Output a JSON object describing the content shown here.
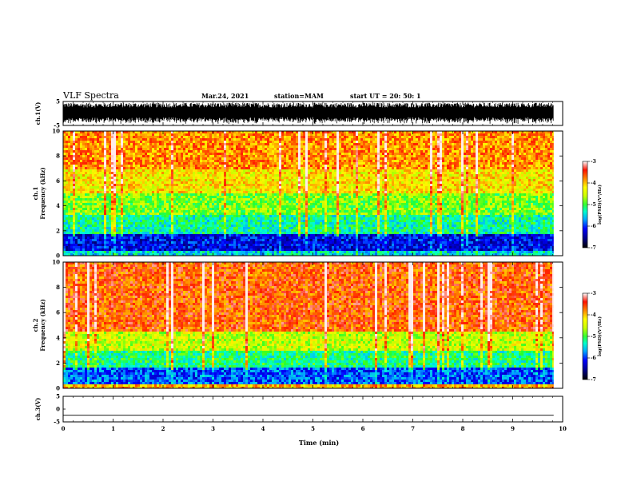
{
  "header": {
    "title": "VLF Spectra",
    "date": "Mar.24, 2021",
    "station": "station=MAM",
    "start": "start  UT =   20: 50: 1"
  },
  "colors": {
    "background": "#ffffff",
    "axes": "#000000",
    "colormap": [
      "#000066",
      "#0000ff",
      "#00aaff",
      "#00ffcc",
      "#33ff33",
      "#ccff00",
      "#ffff00",
      "#ff8800",
      "#ff2200",
      "#ffffff"
    ]
  },
  "chart_data": [
    {
      "type": "line",
      "name": "ch1-waveform",
      "ylabel": "ch.1(V)",
      "ylim": [
        -5,
        5
      ],
      "yticks": [
        "5",
        "-5"
      ],
      "xlim": [
        0,
        10
      ],
      "description_values": {
        "amplitude_range": [
          -4.5,
          4.5
        ],
        "data_end_min": 9.82
      }
    },
    {
      "type": "heatmap",
      "name": "ch1-spectrogram",
      "ylabel_top": "ch.1",
      "ylabel": "Frequency (kHz)",
      "ylim": [
        0,
        10
      ],
      "yticks": [
        "0",
        "2",
        "4",
        "6",
        "8",
        "10"
      ],
      "xlim": [
        0,
        10
      ],
      "data_end_min": 9.82,
      "colorbar": {
        "label": "log(PSD)(V²/Hz)",
        "range": [
          -7,
          -3
        ],
        "ticks": [
          "-3",
          "-4",
          "-5",
          "-6",
          "-7"
        ]
      },
      "bands_kHz": [
        {
          "from": 0,
          "to": 0.4,
          "level": -5.5
        },
        {
          "from": 0.4,
          "to": 1.8,
          "level": -6.3
        },
        {
          "from": 1.8,
          "to": 3.2,
          "level": -5.3
        },
        {
          "from": 3.2,
          "to": 5.0,
          "level": -4.8
        },
        {
          "from": 5.0,
          "to": 7.0,
          "level": -4.2
        },
        {
          "from": 7.0,
          "to": 10.0,
          "level": -3.8
        }
      ]
    },
    {
      "type": "heatmap",
      "name": "ch2-spectrogram",
      "ylabel_top": "ch.2",
      "ylabel": "Frequency (kHz)",
      "ylim": [
        0,
        10
      ],
      "yticks": [
        "0",
        "2",
        "4",
        "6",
        "8",
        "10"
      ],
      "xlim": [
        0,
        10
      ],
      "data_end_min": 9.82,
      "colorbar": {
        "label": "log(PSD)(V²/Hz)",
        "range": [
          -7,
          -3
        ],
        "ticks": [
          "-3",
          "-4",
          "-5",
          "-6",
          "-7"
        ]
      },
      "bands_kHz": [
        {
          "from": 0,
          "to": 0.4,
          "level": -4.0
        },
        {
          "from": 0.4,
          "to": 1.6,
          "level": -6.0
        },
        {
          "from": 1.6,
          "to": 3.0,
          "level": -5.2
        },
        {
          "from": 3.0,
          "to": 4.5,
          "level": -4.5
        },
        {
          "from": 4.5,
          "to": 10.0,
          "level": -3.6
        }
      ]
    },
    {
      "type": "line",
      "name": "ch3-waveform",
      "ylabel": "ch.3(V)",
      "ylim": [
        -5,
        5
      ],
      "yticks": [
        "5",
        "0",
        "-5"
      ],
      "xlim": [
        0,
        10
      ],
      "values": {
        "constant_level": -2.4
      },
      "xlabel": "Time (min)",
      "xticks": [
        "0",
        "1",
        "2",
        "3",
        "4",
        "5",
        "6",
        "7",
        "8",
        "9",
        "10"
      ]
    }
  ]
}
